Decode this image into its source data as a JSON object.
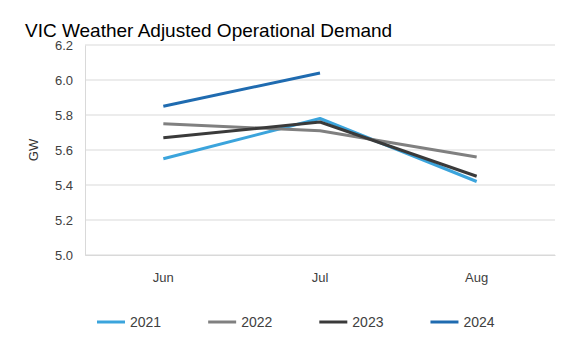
{
  "chart_data": {
    "type": "line",
    "title": "VIC Weather Adjusted Operational Demand",
    "y_label": "GW",
    "categories": [
      "Jun",
      "Jul",
      "Aug"
    ],
    "series": [
      {
        "name": "2021",
        "color": "#3ba4dc",
        "values": [
          5.55,
          5.78,
          5.42
        ]
      },
      {
        "name": "2022",
        "color": "#808080",
        "values": [
          5.75,
          5.71,
          5.56
        ]
      },
      {
        "name": "2023",
        "color": "#3a3a3a",
        "values": [
          5.67,
          5.76,
          5.45
        ]
      },
      {
        "name": "2024",
        "color": "#1f6bb0",
        "values": [
          5.85,
          6.04,
          null
        ]
      }
    ],
    "ylim": [
      5,
      6.2
    ],
    "yticks": [
      {
        "value": 5,
        "label": "5.0"
      },
      5.2,
      5.4,
      5.6,
      5.8,
      {
        "value": 6,
        "label": "6.0"
      },
      6.2
    ],
    "grid": true,
    "legend": "bottom"
  }
}
